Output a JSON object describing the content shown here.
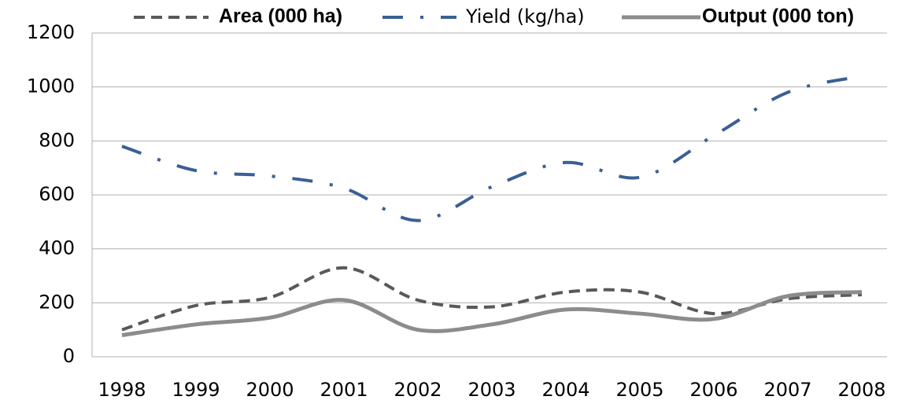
{
  "chart_data": {
    "type": "line",
    "legend": "top",
    "grid": true,
    "categories": [
      "1998",
      "1999",
      "2000",
      "2001",
      "2002",
      "2003",
      "2004",
      "2005",
      "2006",
      "2007",
      "2008"
    ],
    "series": [
      {
        "name": "Area (000 ha)",
        "color": "#595959",
        "values": [
          100,
          190,
          220,
          330,
          210,
          185,
          240,
          240,
          160,
          215,
          230
        ]
      },
      {
        "name": "Yield (kg/ha)",
        "color": "#3a5f94",
        "values": [
          780,
          690,
          670,
          625,
          505,
          630,
          720,
          665,
          820,
          980,
          1040
        ]
      },
      {
        "name": "Output (000 ton)",
        "color": "#8c8c8c",
        "values": [
          80,
          120,
          145,
          210,
          100,
          120,
          175,
          160,
          140,
          225,
          240
        ]
      }
    ],
    "ylim": [
      0,
      1200
    ],
    "yticks": [
      0,
      200,
      400,
      600,
      800,
      1000,
      1200
    ]
  }
}
